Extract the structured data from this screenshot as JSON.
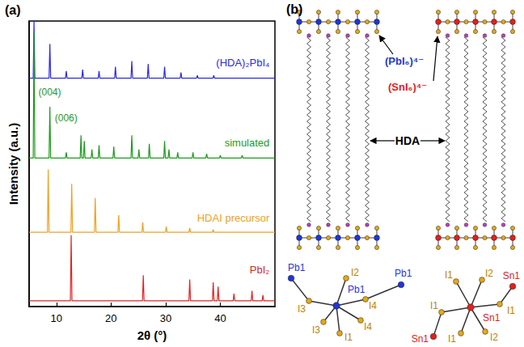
{
  "chart_data": {
    "type": "line",
    "panel_label": "(a)",
    "x_label": "2θ (°)",
    "y_label": "Intensity (a.u.)",
    "xlim": [
      5,
      50
    ],
    "xticks": [
      10,
      20,
      30,
      40
    ],
    "ylim": [
      0,
      100
    ],
    "grid": false,
    "tick_labels": "x",
    "series": [
      {
        "name": "(HDA)₂PbI₄",
        "color": "#2a2ae6",
        "x": [
          5,
          5.75,
          5.9,
          6.05,
          8.65,
          8.8,
          8.95,
          11.65,
          11.8,
          11.95,
          14.65,
          14.8,
          14.95,
          17.65,
          17.8,
          17.95,
          20.65,
          20.8,
          20.95,
          23.65,
          23.8,
          23.95,
          26.65,
          26.8,
          26.95,
          29.65,
          29.8,
          29.95,
          32.65,
          32.8,
          32.95,
          35.65,
          35.8,
          35.95,
          38.65,
          38.8,
          38.95,
          50
        ],
        "values": [
          80,
          80,
          100,
          80,
          80,
          92,
          80,
          80,
          82.5,
          80,
          80,
          83,
          80,
          80,
          82.5,
          80,
          80,
          84,
          80,
          80,
          86,
          80,
          80,
          85,
          80,
          80,
          84,
          80,
          80,
          82,
          80,
          80,
          81,
          80,
          80,
          81,
          80,
          80
        ]
      },
      {
        "name": "simulated",
        "color": "#1f9a1f",
        "x": [
          5,
          5.75,
          5.9,
          6.05,
          8.65,
          8.8,
          8.95,
          11.65,
          11.8,
          11.95,
          14.35,
          14.5,
          14.65,
          14.95,
          15.1,
          15.25,
          16.35,
          16.5,
          16.65,
          17.65,
          17.8,
          17.95,
          20.35,
          20.5,
          20.65,
          23.65,
          23.8,
          23.95,
          24.95,
          25.1,
          25.25,
          26.85,
          27,
          27.15,
          29.65,
          29.8,
          29.95,
          30.45,
          30.6,
          30.75,
          32.05,
          32.2,
          32.35,
          34.85,
          35,
          35.15,
          37.35,
          37.5,
          37.65,
          39.85,
          40,
          40.15,
          43.85,
          44,
          44.15,
          50
        ],
        "values": [
          52,
          52,
          96,
          52,
          52,
          70,
          52,
          52,
          54,
          52,
          52,
          60,
          52,
          52,
          58,
          52,
          52,
          55,
          52,
          52,
          56.5,
          52,
          52,
          56,
          52,
          52,
          60,
          52,
          52,
          55,
          52,
          52,
          57,
          52,
          52,
          58,
          52,
          52,
          55,
          52,
          52,
          54,
          52,
          52,
          54,
          52,
          52,
          53.5,
          52,
          52,
          53,
          52,
          52,
          53,
          52,
          52
        ],
        "annotations": [
          {
            "text": "(004)",
            "x": 6.4,
            "y": 75
          },
          {
            "text": "(006)",
            "x": 9.4,
            "y": 66
          }
        ]
      },
      {
        "name": "HDAI precursor",
        "color": "#f0a020",
        "x": [
          5,
          8.35,
          8.5,
          8.65,
          12.65,
          12.8,
          12.95,
          16.95,
          17.1,
          17.25,
          21.25,
          21.4,
          21.55,
          25.65,
          25.8,
          25.95,
          29.95,
          30.1,
          30.25,
          34.25,
          34.4,
          34.55,
          38.55,
          38.7,
          38.85,
          50
        ],
        "values": [
          26,
          26,
          48,
          26,
          26,
          43,
          26,
          26,
          38,
          26,
          26,
          32,
          26,
          26,
          29.5,
          26,
          26,
          28,
          26,
          26,
          27.5,
          26,
          26,
          27,
          26,
          26
        ]
      },
      {
        "name": "PbI₂",
        "color": "#e02424",
        "x": [
          5,
          12.55,
          12.7,
          12.85,
          25.75,
          25.9,
          26.05,
          34.25,
          34.4,
          34.55,
          38.55,
          38.7,
          38.85,
          39.45,
          39.6,
          39.75,
          42.35,
          42.5,
          42.65,
          45.65,
          45.8,
          45.95,
          47.65,
          47.8,
          47.95,
          50
        ],
        "values": [
          2,
          2,
          25,
          2,
          2,
          11,
          2,
          2,
          9.5,
          2,
          2,
          8.5,
          2,
          2,
          7,
          2,
          2,
          4.5,
          2,
          2,
          5.5,
          2,
          2,
          4,
          2,
          2
        ]
      }
    ]
  },
  "diagram": {
    "panel_label": "(b)",
    "chain_label": "HDA",
    "structures": [
      {
        "layer_label": "(PbI₆)⁴⁻",
        "color": "#1f35d8",
        "center": "Pb1",
        "metal_neighbors": [
          "Pb1",
          "Pb1"
        ],
        "iodides": [
          "I1",
          "I2",
          "I3",
          "I3",
          "I4",
          "I4"
        ]
      },
      {
        "layer_label": "(SnI₆)⁴⁻",
        "color": "#e3201c",
        "center": "Sn1",
        "metal_neighbors": [
          "Sn1",
          "Sn1"
        ],
        "iodides": [
          "I1",
          "I1",
          "I1",
          "I1",
          "I2",
          "I2"
        ]
      }
    ]
  }
}
